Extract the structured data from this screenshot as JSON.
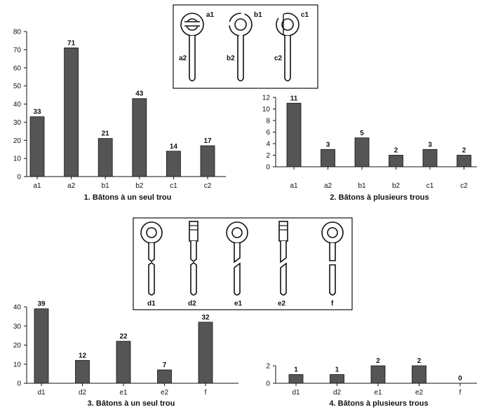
{
  "charts": [
    {
      "type": "bar",
      "categories": [
        "a1",
        "a2",
        "b1",
        "b2",
        "c1",
        "c2"
      ],
      "values": [
        33,
        71,
        21,
        43,
        14,
        17
      ],
      "data_labels": [
        "33",
        "71",
        "21",
        "43",
        "14",
        "17"
      ],
      "yticks": [
        "0",
        "10",
        "20",
        "30",
        "40",
        "50",
        "60",
        "70",
        "80"
      ],
      "title": "1. Bâtons à un seul trou",
      "ylim": [
        0,
        80
      ]
    },
    {
      "type": "bar",
      "categories": [
        "a1",
        "a2",
        "b1",
        "b2",
        "c1",
        "c2"
      ],
      "values": [
        11,
        3,
        5,
        2,
        3,
        2
      ],
      "data_labels": [
        "11",
        "3",
        "5",
        "2",
        "3",
        "2"
      ],
      "yticks": [
        "0",
        "2",
        "4",
        "6",
        "8",
        "10",
        "12"
      ],
      "title": "2. Bâtons à plusieurs trous",
      "ylim": [
        0,
        12
      ]
    },
    {
      "type": "bar",
      "categories": [
        "d1",
        "d2",
        "e1",
        "e2",
        "f"
      ],
      "values": [
        39,
        12,
        22,
        7,
        32
      ],
      "data_labels": [
        "39",
        "12",
        "22",
        "7",
        "32"
      ],
      "yticks": [
        "0",
        "10",
        "20",
        "30",
        "40"
      ],
      "title": "3. Bâtons à un seul trou",
      "ylim": [
        0,
        40
      ]
    },
    {
      "type": "bar",
      "categories": [
        "d1",
        "d2",
        "e1",
        "e2",
        "f"
      ],
      "values": [
        1,
        1,
        2,
        2,
        0
      ],
      "data_labels": [
        "1",
        "1",
        "2",
        "2",
        "0"
      ],
      "yticks": [
        "0",
        "2"
      ],
      "title": "4. Bâtons à plusieurs trous",
      "ylim": [
        0,
        2
      ]
    }
  ],
  "diagram_top": {
    "labels": [
      "a1",
      "b1",
      "c1",
      "a2",
      "b2",
      "c2"
    ]
  },
  "diagram_bottom": {
    "labels": [
      "d1",
      "d2",
      "e1",
      "e2",
      "f"
    ]
  },
  "colors": {
    "bar": "#555555",
    "ink": "#111111"
  }
}
